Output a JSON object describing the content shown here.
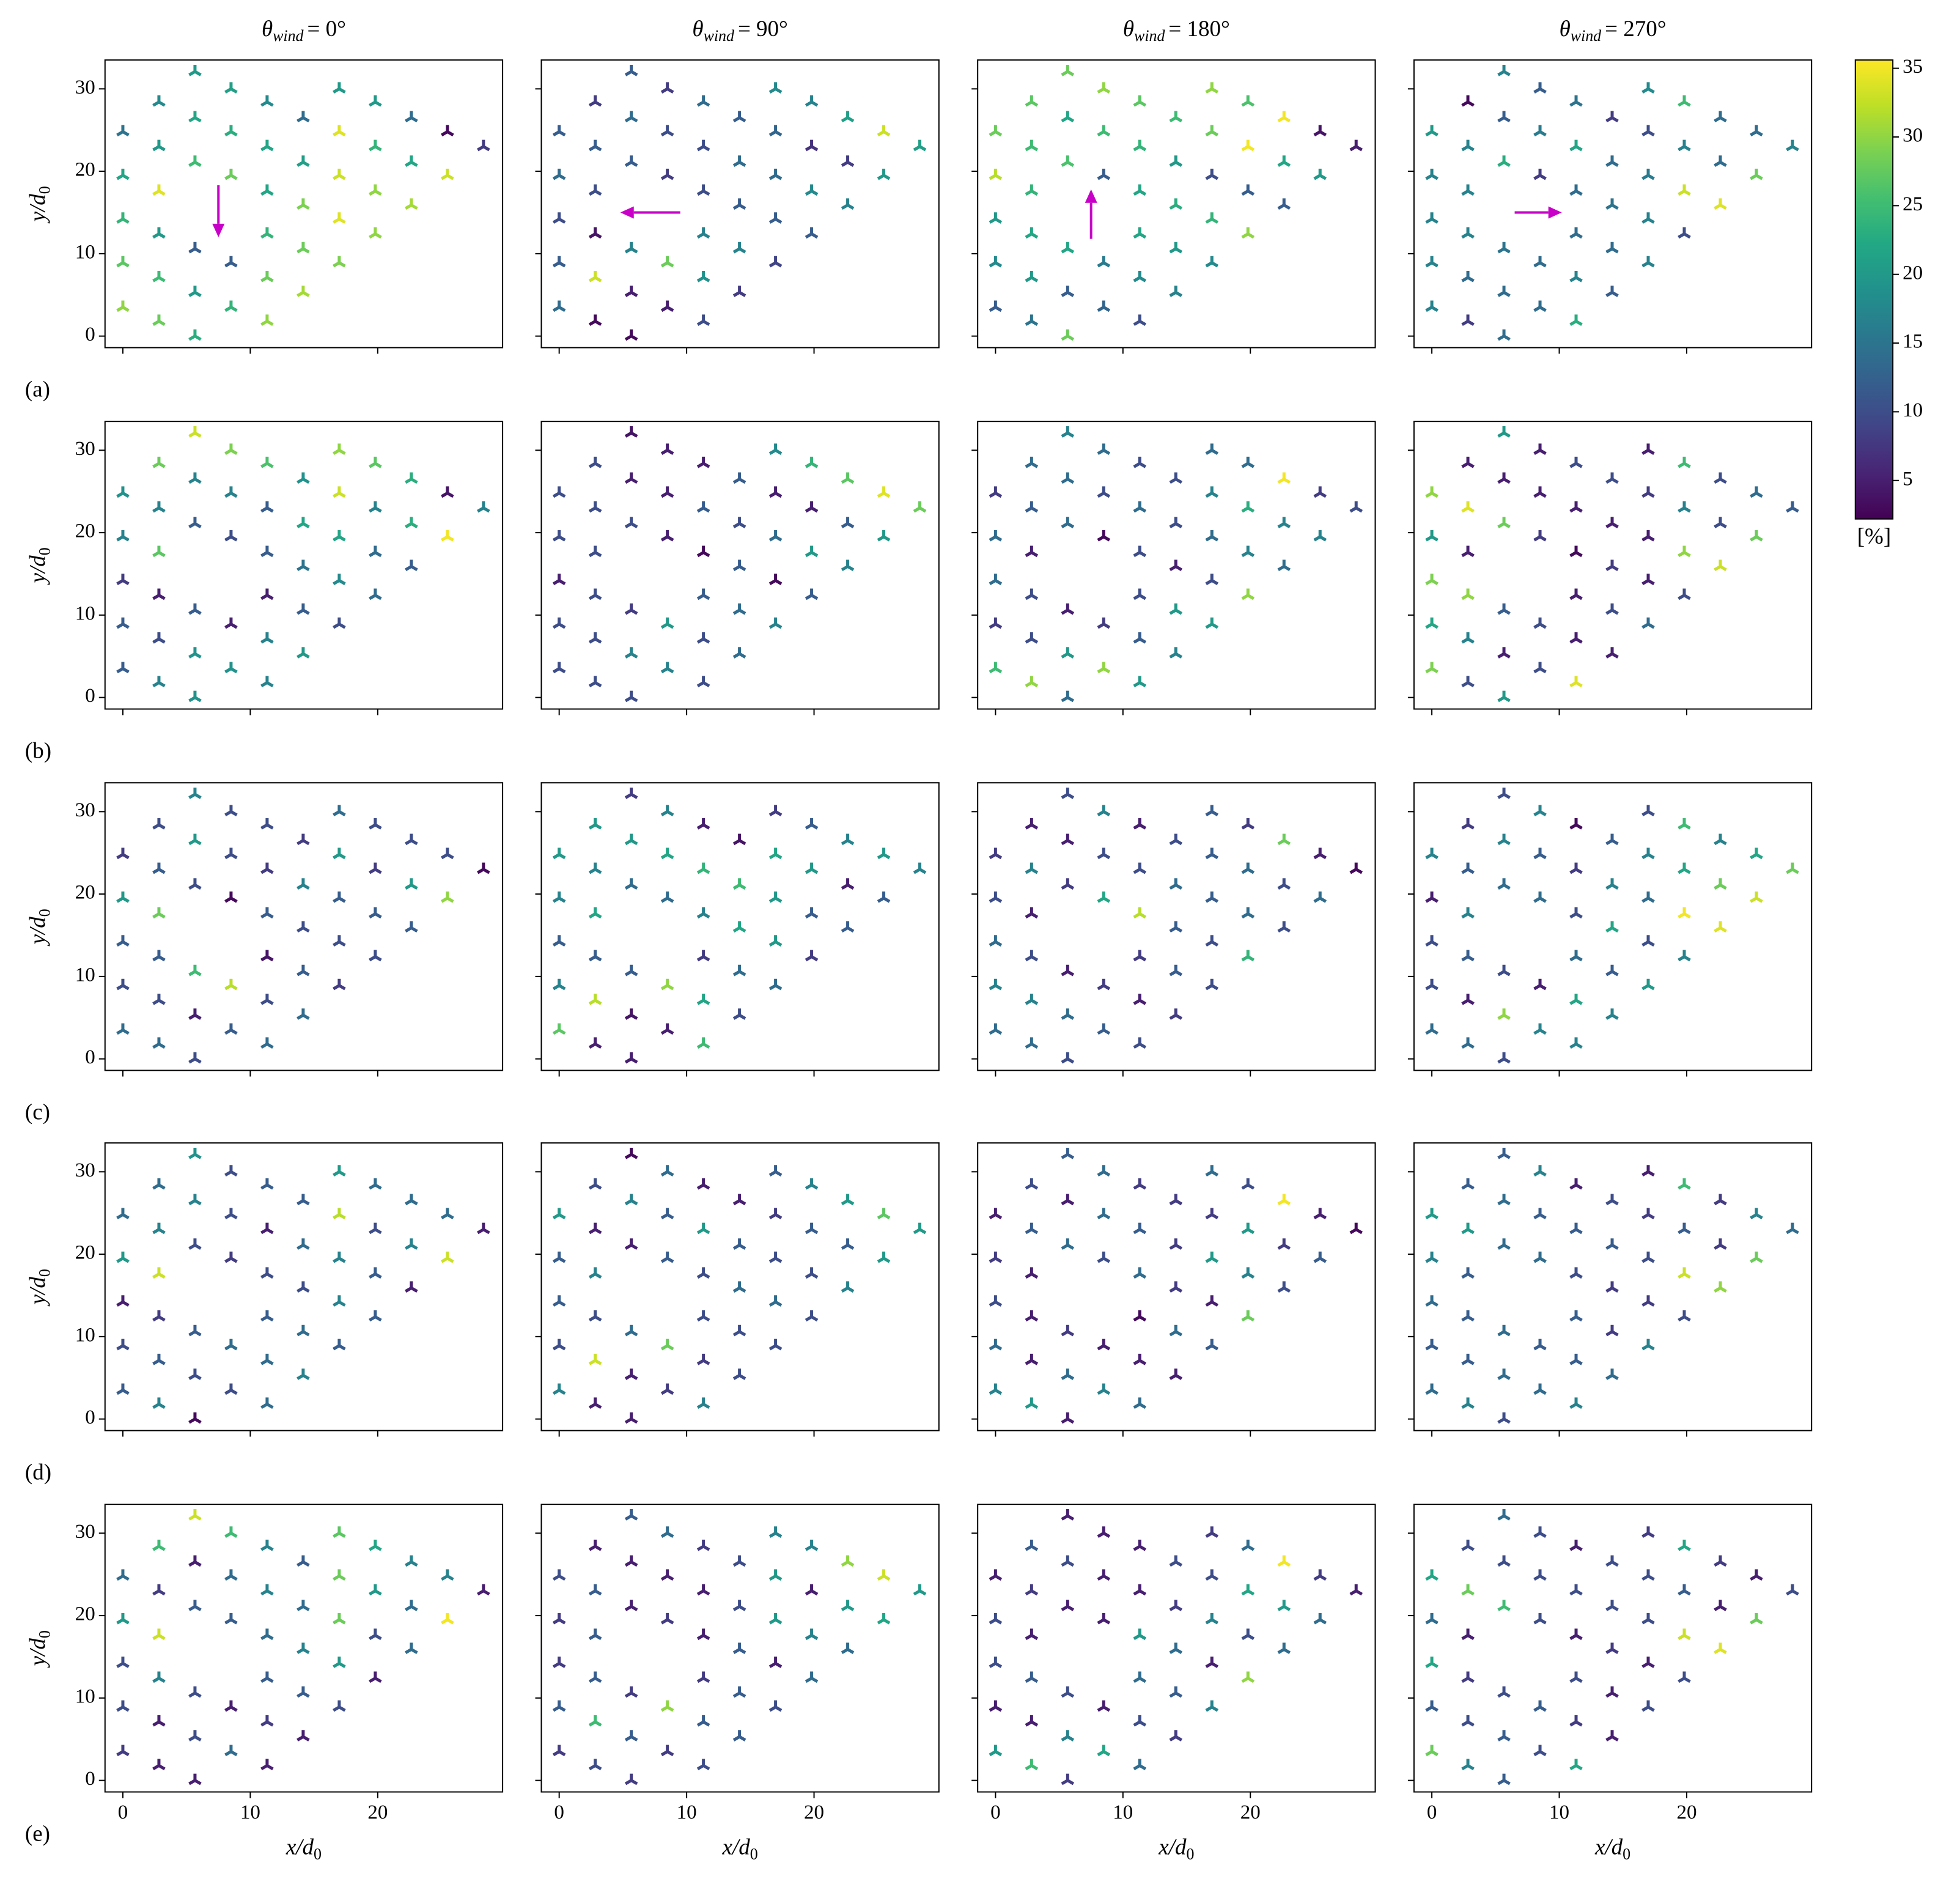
{
  "chart_data": {
    "type": "scatter",
    "title_symbol": "θ",
    "title_subscript": "wind",
    "panel_titles": [
      "= 0°",
      "= 90°",
      "= 180°",
      "= 270°"
    ],
    "row_labels": [
      "(a)",
      "(b)",
      "(c)",
      "(d)",
      "(e)"
    ],
    "xlabel": "x/d",
    "xlabel_sub": "0",
    "ylabel": "y/d",
    "ylabel_sub": "0",
    "xlim": [
      -1.4,
      29.8
    ],
    "ylim": [
      -1.4,
      33.5
    ],
    "xticks": [
      0,
      10,
      20
    ],
    "yticks": [
      0,
      10,
      20,
      30
    ],
    "colorbar": {
      "label": "[%]",
      "clim": [
        2.2,
        35.6
      ],
      "ticks": [
        5,
        10,
        15,
        20,
        25,
        30,
        35
      ],
      "colormap": "viridis"
    },
    "x": [
      5.66,
      8.49,
      16.98,
      2.83,
      11.32,
      19.81,
      5.66,
      14.15,
      22.64,
      0,
      8.49,
      16.98,
      25.47,
      2.83,
      11.32,
      19.81,
      28.3,
      5.66,
      14.15,
      22.64,
      0,
      8.49,
      16.98,
      25.47,
      2.83,
      11.32,
      19.81,
      14.15,
      22.64,
      0,
      16.98,
      2.83,
      11.32,
      19.81,
      5.66,
      14.15,
      0,
      8.49,
      16.98,
      2.83,
      11.32,
      5.66,
      14.15,
      0,
      8.49,
      2.83,
      11.32,
      5.66
    ],
    "y": [
      32.1,
      30,
      30,
      28.4,
      28.4,
      28.4,
      26.5,
      26.5,
      26.5,
      24.8,
      24.8,
      24.8,
      24.8,
      23,
      23,
      23,
      23,
      21.1,
      21.1,
      21.1,
      19.5,
      19.5,
      19.5,
      19.5,
      17.6,
      17.6,
      17.6,
      15.9,
      15.9,
      14.2,
      14.2,
      12.4,
      12.4,
      12.4,
      10.6,
      10.6,
      8.9,
      8.9,
      8.9,
      7.1,
      7.1,
      5.3,
      5.3,
      3.5,
      3.5,
      1.8,
      1.8,
      0
    ],
    "panels": [
      {
        "values": [
          20,
          21,
          20,
          18,
          18,
          20,
          22,
          14,
          14,
          15,
          23,
          34,
          3,
          20,
          22,
          24,
          8,
          25,
          21,
          22,
          22,
          28,
          33,
          33,
          34,
          22,
          30,
          29,
          31,
          24,
          34,
          20,
          24,
          30,
          12,
          28,
          27,
          12,
          29,
          25,
          28,
          20,
          31,
          30,
          24,
          28,
          30,
          23
        ]
      },
      {
        "values": [
          12,
          8,
          18,
          8,
          14,
          17,
          14,
          12,
          21,
          12,
          10,
          13,
          33,
          12,
          10,
          7,
          21,
          12,
          14,
          8,
          14,
          8,
          14,
          20,
          10,
          10,
          18,
          12,
          17,
          10,
          12,
          4,
          17,
          12,
          17,
          17,
          12,
          28,
          9,
          33,
          19,
          5,
          8,
          14,
          5,
          3,
          10,
          3
        ]
      },
      {
        "values": [
          28,
          30,
          30,
          27,
          27,
          26,
          22,
          25,
          35,
          28,
          25,
          28,
          4,
          25,
          24,
          35,
          5,
          26,
          20,
          22,
          32,
          12,
          10,
          20,
          24,
          22,
          12,
          23,
          12,
          20,
          24,
          22,
          22,
          30,
          22,
          20,
          18,
          16,
          18,
          20,
          18,
          12,
          17,
          12,
          13,
          15,
          10,
          28
        ]
      },
      {
        "values": [
          17,
          12,
          18,
          3,
          15,
          25,
          12,
          8,
          14,
          20,
          16,
          10,
          14,
          17,
          22,
          17,
          17,
          23,
          14,
          14,
          17,
          8,
          16,
          28,
          17,
          14,
          33,
          15,
          34,
          17,
          17,
          17,
          14,
          10,
          15,
          14,
          17,
          14,
          17,
          14,
          17,
          14,
          12,
          17,
          14,
          8,
          23,
          14
        ]
      },
      {
        "values": [
          33,
          29,
          30,
          28,
          26,
          27,
          17,
          19,
          23,
          19,
          17,
          33,
          4,
          17,
          12,
          17,
          17,
          12,
          22,
          23,
          17,
          10,
          22,
          35,
          27,
          12,
          14,
          15,
          12,
          8,
          18,
          5,
          5,
          14,
          12,
          12,
          12,
          5,
          10,
          10,
          17,
          19,
          20,
          12,
          19,
          17,
          17,
          19
        ]
      },
      {
        "values": [
          4,
          5,
          18,
          10,
          5,
          24,
          5,
          12,
          27,
          10,
          5,
          5,
          34,
          10,
          12,
          5,
          28,
          10,
          10,
          12,
          10,
          5,
          14,
          20,
          10,
          3,
          20,
          12,
          17,
          5,
          3,
          10,
          12,
          12,
          8,
          14,
          10,
          20,
          17,
          10,
          10,
          17,
          14,
          10,
          17,
          10,
          10,
          10
        ]
      },
      {
        "values": [
          17,
          14,
          14,
          14,
          10,
          14,
          14,
          10,
          35,
          8,
          10,
          17,
          8,
          12,
          14,
          23,
          10,
          14,
          10,
          17,
          14,
          3,
          14,
          17,
          5,
          10,
          17,
          5,
          14,
          14,
          10,
          10,
          10,
          30,
          5,
          20,
          8,
          8,
          20,
          10,
          12,
          20,
          17,
          25,
          30,
          30,
          20,
          14
        ]
      },
      {
        "values": [
          20,
          5,
          5,
          5,
          10,
          25,
          5,
          10,
          10,
          30,
          5,
          8,
          14,
          34,
          5,
          17,
          12,
          28,
          5,
          10,
          20,
          8,
          5,
          28,
          5,
          3,
          30,
          8,
          33,
          29,
          5,
          30,
          5,
          10,
          12,
          10,
          22,
          10,
          14,
          17,
          5,
          5,
          5,
          29,
          10,
          10,
          34,
          20
        ]
      },
      {
        "values": [
          17,
          10,
          14,
          10,
          10,
          10,
          20,
          8,
          10,
          8,
          10,
          20,
          10,
          12,
          8,
          8,
          3,
          10,
          17,
          20,
          20,
          3,
          12,
          30,
          28,
          12,
          12,
          10,
          12,
          12,
          10,
          12,
          4,
          10,
          25,
          12,
          10,
          32,
          8,
          10,
          10,
          5,
          14,
          14,
          12,
          14,
          14,
          10
        ]
      },
      {
        "values": [
          8,
          17,
          8,
          20,
          5,
          12,
          20,
          4,
          17,
          20,
          22,
          22,
          20,
          17,
          24,
          20,
          17,
          14,
          25,
          5,
          17,
          14,
          20,
          12,
          22,
          17,
          12,
          22,
          12,
          12,
          20,
          12,
          8,
          8,
          12,
          14,
          17,
          30,
          14,
          32,
          22,
          4,
          10,
          27,
          5,
          5,
          25,
          5
        ]
      },
      {
        "values": [
          10,
          17,
          12,
          5,
          5,
          8,
          5,
          10,
          28,
          8,
          10,
          12,
          5,
          17,
          10,
          14,
          3,
          8,
          14,
          10,
          10,
          22,
          12,
          14,
          5,
          32,
          14,
          12,
          10,
          14,
          10,
          10,
          8,
          24,
          5,
          12,
          17,
          8,
          10,
          17,
          5,
          14,
          8,
          14,
          12,
          14,
          10,
          10
        ]
      },
      {
        "values": [
          10,
          17,
          10,
          8,
          3,
          25,
          17,
          12,
          17,
          17,
          12,
          17,
          22,
          12,
          8,
          22,
          28,
          14,
          17,
          28,
          5,
          14,
          14,
          33,
          17,
          10,
          35,
          22,
          34,
          10,
          10,
          12,
          14,
          17,
          10,
          12,
          10,
          5,
          20,
          5,
          22,
          30,
          17,
          14,
          17,
          14,
          17,
          10
        ]
      },
      {
        "values": [
          19,
          10,
          20,
          14,
          12,
          14,
          17,
          12,
          14,
          14,
          10,
          32,
          14,
          17,
          5,
          10,
          5,
          10,
          14,
          17,
          20,
          8,
          17,
          33,
          33,
          10,
          12,
          10,
          5,
          5,
          17,
          8,
          12,
          12,
          12,
          14,
          10,
          14,
          12,
          12,
          14,
          10,
          17,
          12,
          10,
          17,
          14,
          3
        ]
      },
      {
        "values": [
          3,
          14,
          12,
          10,
          5,
          17,
          17,
          5,
          20,
          20,
          12,
          8,
          27,
          5,
          20,
          12,
          20,
          5,
          12,
          12,
          12,
          12,
          10,
          20,
          17,
          10,
          10,
          14,
          17,
          12,
          14,
          10,
          10,
          10,
          14,
          10,
          10,
          28,
          10,
          33,
          8,
          5,
          10,
          17,
          8,
          5,
          17,
          5
        ]
      },
      {
        "values": [
          12,
          14,
          14,
          10,
          8,
          10,
          5,
          8,
          35,
          5,
          14,
          8,
          5,
          12,
          12,
          20,
          3,
          14,
          8,
          8,
          8,
          10,
          20,
          12,
          5,
          14,
          17,
          8,
          10,
          10,
          5,
          5,
          3,
          28,
          8,
          14,
          14,
          5,
          12,
          5,
          5,
          14,
          5,
          17,
          17,
          20,
          14,
          5
        ]
      },
      {
        "values": [
          12,
          17,
          5,
          12,
          5,
          25,
          14,
          10,
          8,
          20,
          12,
          8,
          17,
          20,
          12,
          12,
          14,
          14,
          12,
          8,
          17,
          14,
          10,
          28,
          12,
          10,
          33,
          8,
          30,
          14,
          8,
          12,
          12,
          10,
          14,
          8,
          12,
          12,
          17,
          12,
          12,
          14,
          14,
          14,
          14,
          17,
          17,
          10
        ]
      },
      {
        "values": [
          33,
          25,
          27,
          25,
          17,
          22,
          5,
          12,
          17,
          14,
          14,
          28,
          17,
          8,
          17,
          20,
          5,
          12,
          14,
          14,
          20,
          12,
          28,
          35,
          33,
          14,
          10,
          17,
          14,
          10,
          20,
          17,
          12,
          5,
          10,
          12,
          10,
          5,
          10,
          5,
          8,
          10,
          5,
          8,
          14,
          5,
          5,
          5
        ]
      },
      {
        "values": [
          12,
          14,
          17,
          5,
          8,
          17,
          5,
          10,
          30,
          10,
          5,
          20,
          33,
          12,
          5,
          5,
          20,
          5,
          10,
          20,
          8,
          8,
          20,
          22,
          12,
          5,
          17,
          12,
          14,
          8,
          5,
          12,
          8,
          14,
          8,
          12,
          12,
          30,
          10,
          25,
          12,
          12,
          12,
          8,
          8,
          10,
          10,
          8
        ]
      },
      {
        "values": [
          5,
          5,
          8,
          12,
          5,
          14,
          10,
          10,
          35,
          5,
          5,
          10,
          8,
          8,
          5,
          22,
          5,
          5,
          8,
          20,
          10,
          5,
          17,
          14,
          5,
          20,
          10,
          14,
          14,
          10,
          5,
          12,
          14,
          30,
          10,
          12,
          5,
          5,
          17,
          5,
          10,
          17,
          8,
          20,
          22,
          25,
          14,
          8
        ]
      },
      {
        "values": [
          14,
          10,
          8,
          10,
          5,
          22,
          10,
          10,
          8,
          22,
          10,
          10,
          5,
          28,
          10,
          12,
          10,
          25,
          10,
          5,
          14,
          10,
          10,
          28,
          5,
          5,
          33,
          8,
          34,
          22,
          5,
          8,
          10,
          10,
          10,
          5,
          12,
          12,
          10,
          10,
          8,
          12,
          5,
          28,
          10,
          17,
          22,
          12
        ]
      }
    ]
  }
}
